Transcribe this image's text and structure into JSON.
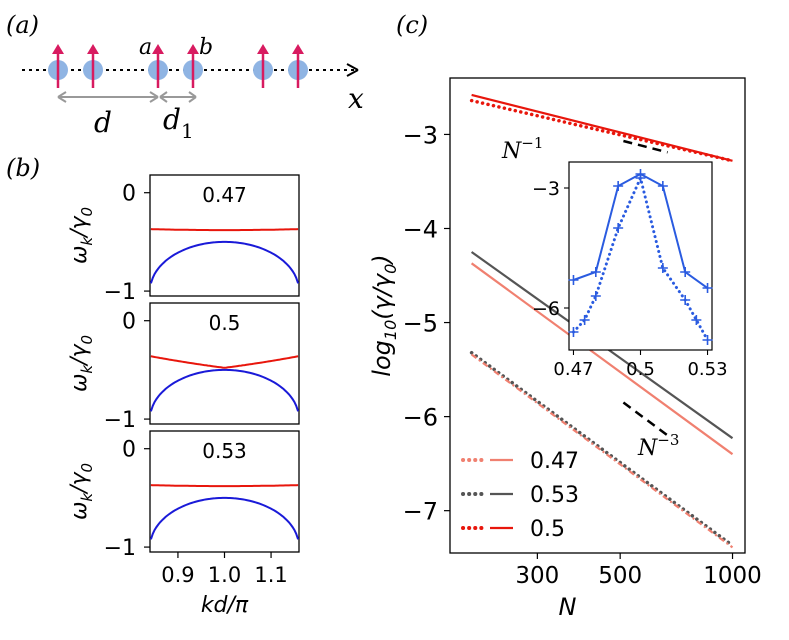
{
  "panels": {
    "a": {
      "label": "(a)",
      "site_a": "a",
      "site_b": "b",
      "axis_label": "x",
      "dist_d": "d",
      "dist_d1": "d",
      "dist_d1_sub": "1"
    },
    "b": {
      "label": "(b)"
    },
    "c": {
      "label": "(c)"
    }
  },
  "colors": {
    "spin": "#d81b60",
    "site": "#8fb4e3",
    "red": "#e8160c",
    "blue": "#1a1ad8",
    "salmon": "#f08070",
    "gray": "#555555",
    "inset_blue": "#2a5be0"
  },
  "chart_data": [
    {
      "id": "b-top",
      "type": "line",
      "title": "0.47",
      "xlabel": "",
      "ylabel": "ω_k/γ_0",
      "ylabel_main": "ω",
      "ylabel_sub": "k",
      "ylabel_den": "/γ",
      "ylabel_den_sub": "0",
      "xlim": [
        0.84,
        1.16
      ],
      "ylim": [
        -1.05,
        0.18
      ],
      "yticks": [
        {
          "value": 0,
          "label": "0"
        },
        {
          "value": -1,
          "label": "−1"
        }
      ],
      "series": [
        {
          "name": "upper band",
          "color": "#e8160c",
          "kind": "flat",
          "base": -0.37,
          "depth": 0.02
        },
        {
          "name": "lower band",
          "color": "#1a1ad8",
          "kind": "dome",
          "base": -1.0,
          "peak": -0.5
        }
      ]
    },
    {
      "id": "b-mid",
      "type": "line",
      "title": "0.5",
      "xlabel": "",
      "ylabel": "ω_k/γ_0",
      "ylabel_main": "ω",
      "ylabel_sub": "k",
      "ylabel_den": "/γ",
      "ylabel_den_sub": "0",
      "xlim": [
        0.84,
        1.16
      ],
      "ylim": [
        -1.05,
        0.18
      ],
      "yticks": [
        {
          "value": 0,
          "label": "0"
        },
        {
          "value": -1,
          "label": "−1"
        }
      ],
      "series": [
        {
          "name": "upper branch",
          "color": "#e8160c",
          "kind": "vee",
          "base": -0.36,
          "peak": -0.5
        },
        {
          "name": "lower branch",
          "color": "#1a1ad8",
          "kind": "dome",
          "base": -1.0,
          "peak": -0.5
        }
      ]
    },
    {
      "id": "b-bot",
      "type": "line",
      "title": "0.53",
      "xlabel": "kd/π",
      "ylabel": "ω_k/γ_0",
      "ylabel_main": "ω",
      "ylabel_sub": "k",
      "ylabel_den": "/γ",
      "ylabel_den_sub": "0",
      "xlim": [
        0.84,
        1.16
      ],
      "ylim": [
        -1.05,
        0.18
      ],
      "yticks": [
        {
          "value": 0,
          "label": "0"
        },
        {
          "value": -1,
          "label": "−1"
        }
      ],
      "xticks": [
        {
          "value": 0.9,
          "label": "0.9"
        },
        {
          "value": 1.0,
          "label": "1.0"
        },
        {
          "value": 1.1,
          "label": "1.1"
        }
      ],
      "series": [
        {
          "name": "upper band",
          "color": "#e8160c",
          "kind": "flat",
          "base": -0.37,
          "depth": 0.02
        },
        {
          "name": "lower band",
          "color": "#1a1ad8",
          "kind": "dome",
          "base": -1.0,
          "peak": -0.5
        }
      ]
    },
    {
      "id": "c-main",
      "type": "line",
      "title": "",
      "xlabel": "N",
      "ylabel": "log10(γ/γ0)",
      "ylabel_pre": "log",
      "ylabel_sub": "10",
      "ylabel_post": "(γ/γ",
      "ylabel_post_sub": "0",
      "ylabel_end": ")",
      "xscale": "log",
      "xlim": [
        175,
        1080
      ],
      "ylim": [
        -7.45,
        -2.4
      ],
      "yticks": [
        {
          "value": -3,
          "label": "−3"
        },
        {
          "value": -4,
          "label": "−4"
        },
        {
          "value": -5,
          "label": "−5"
        },
        {
          "value": -6,
          "label": "−6"
        },
        {
          "value": -7,
          "label": "−7"
        }
      ],
      "xticks": [
        {
          "value": 300,
          "label": "300"
        },
        {
          "value": 500,
          "label": "500"
        },
        {
          "value": 1000,
          "label": "1000"
        }
      ],
      "series": [
        {
          "name": "0.5 solid",
          "color": "#e8160c",
          "style": "solid",
          "x": [
            200,
            1000
          ],
          "y": [
            -2.58,
            -3.28
          ]
        },
        {
          "name": "0.5 dotted",
          "color": "#e8160c",
          "style": "dotted",
          "x": [
            200,
            1000
          ],
          "y": [
            -2.64,
            -3.28
          ]
        },
        {
          "name": "0.53 solid",
          "color": "#555555",
          "style": "solid",
          "x": [
            200,
            1000
          ],
          "y": [
            -4.25,
            -6.23
          ]
        },
        {
          "name": "0.47 solid",
          "color": "#f08070",
          "style": "solid",
          "x": [
            200,
            1000
          ],
          "y": [
            -4.37,
            -6.4
          ]
        },
        {
          "name": "0.53 dotted",
          "color": "#555555",
          "style": "dotted",
          "x": [
            200,
            1000
          ],
          "y": [
            -5.32,
            -7.37
          ]
        },
        {
          "name": "0.47 dotted",
          "color": "#f08070",
          "style": "dashdot",
          "x": [
            200,
            1000
          ],
          "y": [
            -5.34,
            -7.39
          ]
        },
        {
          "name": "N^-1 guide",
          "color": "#000000",
          "style": "dashed",
          "x": [
            510,
            670
          ],
          "y": [
            -3.07,
            -3.19
          ]
        },
        {
          "name": "N^-3 guide",
          "color": "#000000",
          "style": "dashed",
          "x": [
            510,
            670
          ],
          "y": [
            -5.85,
            -6.2
          ]
        }
      ],
      "annotations": [
        {
          "text": "N",
          "sup": "−1"
        },
        {
          "text": "N",
          "sup": "−3"
        }
      ],
      "legend": {
        "placement": "bottom-left",
        "entries": [
          {
            "label": "0.47",
            "color": "#f08070"
          },
          {
            "label": "0.53",
            "color": "#555555"
          },
          {
            "label": "0.5",
            "color": "#e8160c"
          }
        ]
      }
    },
    {
      "id": "c-inset",
      "type": "line",
      "title": "",
      "xlabel": "",
      "ylabel": "",
      "xlim": [
        0.468,
        0.532
      ],
      "ylim": [
        -7.05,
        -2.35
      ],
      "yticks": [
        {
          "value": -3,
          "label": "−3"
        },
        {
          "value": -6,
          "label": "−6"
        }
      ],
      "xticks": [
        {
          "value": 0.47,
          "label": "0.47"
        },
        {
          "value": 0.5,
          "label": "0.5"
        },
        {
          "value": 0.53,
          "label": "0.53"
        }
      ],
      "series": [
        {
          "name": "solid",
          "color": "#2a5be0",
          "style": "solid",
          "x": [
            0.47,
            0.48,
            0.49,
            0.5,
            0.51,
            0.52,
            0.53
          ],
          "y": [
            -5.3,
            -5.1,
            -2.95,
            -2.65,
            -2.95,
            -5.1,
            -5.5
          ]
        },
        {
          "name": "dotted",
          "color": "#2a5be0",
          "style": "dotted",
          "x": [
            0.47,
            0.475,
            0.48,
            0.49,
            0.5,
            0.51,
            0.52,
            0.525,
            0.53
          ],
          "y": [
            -6.6,
            -6.3,
            -5.7,
            -4.0,
            -2.75,
            -5.0,
            -5.8,
            -6.3,
            -6.8
          ]
        }
      ]
    }
  ]
}
